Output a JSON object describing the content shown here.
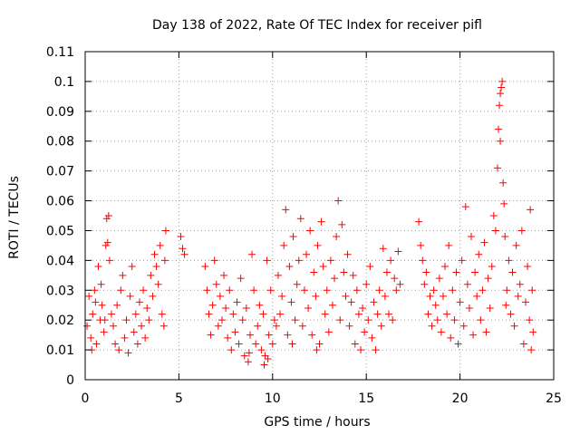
{
  "chart_data": {
    "type": "scatter",
    "title": "Day 138 of 2022, Rate Of TEC Index for receiver pifl",
    "xlabel": "GPS time / hours",
    "ylabel": "ROTI / TECUs",
    "xlim": [
      0,
      25
    ],
    "ylim": [
      0,
      0.11
    ],
    "xticks": [
      0,
      5,
      10,
      15,
      20,
      25
    ],
    "xtick_labels": [
      "0",
      "5",
      "10",
      "15",
      "20",
      "25"
    ],
    "yticks": [
      0,
      0.01,
      0.02,
      0.03,
      0.04,
      0.05,
      0.06,
      0.07,
      0.08,
      0.09,
      0.1,
      0.11
    ],
    "ytick_labels": [
      "0",
      "0.01",
      "0.02",
      "0.03",
      "0.04",
      "0.05",
      "0.06",
      "0.07",
      "0.08",
      "0.09",
      "0.1",
      "0.11"
    ],
    "grid": true,
    "marker": "+",
    "color": "#ff0000",
    "series": [
      {
        "name": "ROTI",
        "points": [
          [
            0.1,
            0.018
          ],
          [
            0.2,
            0.028
          ],
          [
            0.3,
            0.014
          ],
          [
            0.4,
            0.022
          ],
          [
            0.5,
            0.03
          ],
          [
            0.6,
            0.012
          ],
          [
            0.7,
            0.038
          ],
          [
            0.8,
            0.02
          ],
          [
            0.9,
            0.025
          ],
          [
            1.0,
            0.016
          ],
          [
            1.1,
            0.045
          ],
          [
            1.15,
            0.054
          ],
          [
            1.2,
            0.046
          ],
          [
            1.25,
            0.055
          ],
          [
            1.3,
            0.04
          ],
          [
            1.4,
            0.022
          ],
          [
            1.5,
            0.018
          ],
          [
            1.6,
            0.012
          ],
          [
            1.7,
            0.025
          ],
          [
            1.8,
            0.01
          ],
          [
            1.9,
            0.03
          ],
          [
            2.0,
            0.035
          ],
          [
            2.1,
            0.014
          ],
          [
            2.2,
            0.02
          ],
          [
            2.3,
            0.009
          ],
          [
            2.4,
            0.028
          ],
          [
            2.5,
            0.038
          ],
          [
            2.6,
            0.016
          ],
          [
            2.7,
            0.022
          ],
          [
            2.8,
            0.012
          ],
          [
            2.9,
            0.026
          ],
          [
            3.0,
            0.018
          ],
          [
            3.1,
            0.03
          ],
          [
            3.2,
            0.014
          ],
          [
            3.3,
            0.024
          ],
          [
            3.4,
            0.02
          ],
          [
            3.5,
            0.035
          ],
          [
            3.6,
            0.028
          ],
          [
            3.7,
            0.042
          ],
          [
            3.8,
            0.038
          ],
          [
            3.9,
            0.032
          ],
          [
            4.0,
            0.045
          ],
          [
            4.1,
            0.022
          ],
          [
            4.2,
            0.018
          ],
          [
            4.3,
            0.05
          ],
          [
            4.25,
            0.04
          ],
          [
            0.35,
            0.01
          ],
          [
            0.55,
            0.026
          ],
          [
            0.85,
            0.032
          ],
          [
            1.05,
            0.02
          ],
          [
            5.1,
            0.048
          ],
          [
            5.2,
            0.044
          ],
          [
            5.3,
            0.042
          ],
          [
            6.4,
            0.038
          ],
          [
            6.5,
            0.03
          ],
          [
            6.6,
            0.022
          ],
          [
            6.7,
            0.015
          ],
          [
            6.8,
            0.025
          ],
          [
            6.9,
            0.04
          ],
          [
            7.0,
            0.032
          ],
          [
            7.1,
            0.018
          ],
          [
            7.2,
            0.028
          ],
          [
            7.3,
            0.02
          ],
          [
            7.4,
            0.035
          ],
          [
            7.5,
            0.024
          ],
          [
            7.6,
            0.014
          ],
          [
            7.7,
            0.03
          ],
          [
            7.8,
            0.01
          ],
          [
            7.9,
            0.022
          ],
          [
            8.0,
            0.016
          ],
          [
            8.1,
            0.026
          ],
          [
            8.2,
            0.012
          ],
          [
            8.3,
            0.034
          ],
          [
            8.4,
            0.02
          ],
          [
            8.5,
            0.008
          ],
          [
            8.6,
            0.024
          ],
          [
            8.7,
            0.006
          ],
          [
            8.8,
            0.015
          ],
          [
            8.9,
            0.042
          ],
          [
            9.0,
            0.03
          ],
          [
            9.1,
            0.012
          ],
          [
            9.2,
            0.018
          ],
          [
            9.3,
            0.025
          ],
          [
            9.4,
            0.01
          ],
          [
            9.5,
            0.022
          ],
          [
            9.6,
            0.008
          ],
          [
            9.7,
            0.04
          ],
          [
            9.8,
            0.015
          ],
          [
            9.9,
            0.03
          ],
          [
            10.0,
            0.012
          ],
          [
            10.1,
            0.02
          ],
          [
            10.2,
            0.018
          ],
          [
            10.3,
            0.035
          ],
          [
            10.4,
            0.022
          ],
          [
            10.5,
            0.028
          ],
          [
            10.6,
            0.045
          ],
          [
            10.7,
            0.057
          ],
          [
            10.8,
            0.015
          ],
          [
            10.9,
            0.038
          ],
          [
            11.0,
            0.026
          ],
          [
            11.1,
            0.048
          ],
          [
            11.2,
            0.02
          ],
          [
            11.3,
            0.032
          ],
          [
            11.4,
            0.04
          ],
          [
            11.5,
            0.054
          ],
          [
            11.6,
            0.018
          ],
          [
            11.7,
            0.03
          ],
          [
            11.8,
            0.042
          ],
          [
            11.9,
            0.024
          ],
          [
            12.0,
            0.05
          ],
          [
            12.1,
            0.015
          ],
          [
            12.2,
            0.036
          ],
          [
            12.3,
            0.028
          ],
          [
            12.4,
            0.045
          ],
          [
            12.5,
            0.012
          ],
          [
            12.6,
            0.053
          ],
          [
            12.7,
            0.038
          ],
          [
            12.8,
            0.022
          ],
          [
            12.9,
            0.03
          ],
          [
            13.0,
            0.016
          ],
          [
            13.1,
            0.04
          ],
          [
            13.2,
            0.025
          ],
          [
            13.3,
            0.034
          ],
          [
            13.4,
            0.048
          ],
          [
            13.5,
            0.06
          ],
          [
            13.6,
            0.02
          ],
          [
            13.7,
            0.052
          ],
          [
            13.8,
            0.036
          ],
          [
            13.9,
            0.028
          ],
          [
            14.0,
            0.042
          ],
          [
            14.1,
            0.018
          ],
          [
            14.2,
            0.026
          ],
          [
            14.3,
            0.035
          ],
          [
            14.4,
            0.012
          ],
          [
            14.5,
            0.03
          ],
          [
            14.6,
            0.022
          ],
          [
            14.7,
            0.01
          ],
          [
            14.8,
            0.024
          ],
          [
            14.9,
            0.016
          ],
          [
            15.0,
            0.032
          ],
          [
            15.1,
            0.02
          ],
          [
            15.2,
            0.038
          ],
          [
            15.3,
            0.014
          ],
          [
            15.4,
            0.026
          ],
          [
            15.5,
            0.01
          ],
          [
            15.6,
            0.022
          ],
          [
            15.7,
            0.03
          ],
          [
            15.8,
            0.018
          ],
          [
            15.9,
            0.044
          ],
          [
            16.0,
            0.028
          ],
          [
            16.1,
            0.036
          ],
          [
            16.2,
            0.022
          ],
          [
            16.3,
            0.04
          ],
          [
            16.4,
            0.02
          ],
          [
            16.5,
            0.034
          ],
          [
            16.6,
            0.03
          ],
          [
            16.7,
            0.043
          ],
          [
            16.8,
            0.032
          ],
          [
            9.55,
            0.005
          ],
          [
            9.75,
            0.007
          ],
          [
            8.75,
            0.009
          ],
          [
            12.35,
            0.01
          ],
          [
            11.05,
            0.012
          ],
          [
            17.8,
            0.053
          ],
          [
            17.9,
            0.045
          ],
          [
            18.0,
            0.04
          ],
          [
            18.1,
            0.032
          ],
          [
            18.2,
            0.036
          ],
          [
            18.3,
            0.022
          ],
          [
            18.4,
            0.028
          ],
          [
            18.5,
            0.018
          ],
          [
            18.6,
            0.03
          ],
          [
            18.7,
            0.025
          ],
          [
            18.8,
            0.02
          ],
          [
            18.9,
            0.034
          ],
          [
            19.0,
            0.016
          ],
          [
            19.1,
            0.028
          ],
          [
            19.2,
            0.038
          ],
          [
            19.3,
            0.022
          ],
          [
            19.4,
            0.045
          ],
          [
            19.5,
            0.014
          ],
          [
            19.6,
            0.03
          ],
          [
            19.7,
            0.02
          ],
          [
            19.8,
            0.036
          ],
          [
            19.9,
            0.012
          ],
          [
            20.0,
            0.026
          ],
          [
            20.1,
            0.04
          ],
          [
            20.2,
            0.018
          ],
          [
            20.3,
            0.058
          ],
          [
            20.4,
            0.032
          ],
          [
            20.5,
            0.024
          ],
          [
            20.6,
            0.048
          ],
          [
            20.7,
            0.015
          ],
          [
            20.8,
            0.036
          ],
          [
            20.9,
            0.028
          ],
          [
            21.0,
            0.042
          ],
          [
            21.1,
            0.02
          ],
          [
            21.2,
            0.03
          ],
          [
            21.3,
            0.046
          ],
          [
            21.4,
            0.016
          ],
          [
            21.5,
            0.034
          ],
          [
            21.6,
            0.024
          ],
          [
            21.7,
            0.038
          ],
          [
            21.8,
            0.055
          ],
          [
            21.9,
            0.05
          ],
          [
            22.0,
            0.071
          ],
          [
            22.05,
            0.084
          ],
          [
            22.1,
            0.092
          ],
          [
            22.15,
            0.096
          ],
          [
            22.2,
            0.098
          ],
          [
            22.25,
            0.1
          ],
          [
            22.3,
            0.066
          ],
          [
            22.35,
            0.059
          ],
          [
            22.4,
            0.048
          ],
          [
            22.5,
            0.03
          ],
          [
            22.6,
            0.04
          ],
          [
            22.7,
            0.022
          ],
          [
            22.8,
            0.036
          ],
          [
            22.9,
            0.018
          ],
          [
            23.0,
            0.045
          ],
          [
            23.1,
            0.028
          ],
          [
            23.2,
            0.032
          ],
          [
            23.3,
            0.05
          ],
          [
            23.4,
            0.012
          ],
          [
            23.5,
            0.026
          ],
          [
            23.6,
            0.038
          ],
          [
            23.7,
            0.02
          ],
          [
            23.75,
            0.057
          ],
          [
            23.8,
            0.01
          ],
          [
            23.85,
            0.03
          ],
          [
            23.9,
            0.016
          ],
          [
            22.15,
            0.08
          ],
          [
            22.45,
            0.025
          ]
        ]
      }
    ]
  }
}
